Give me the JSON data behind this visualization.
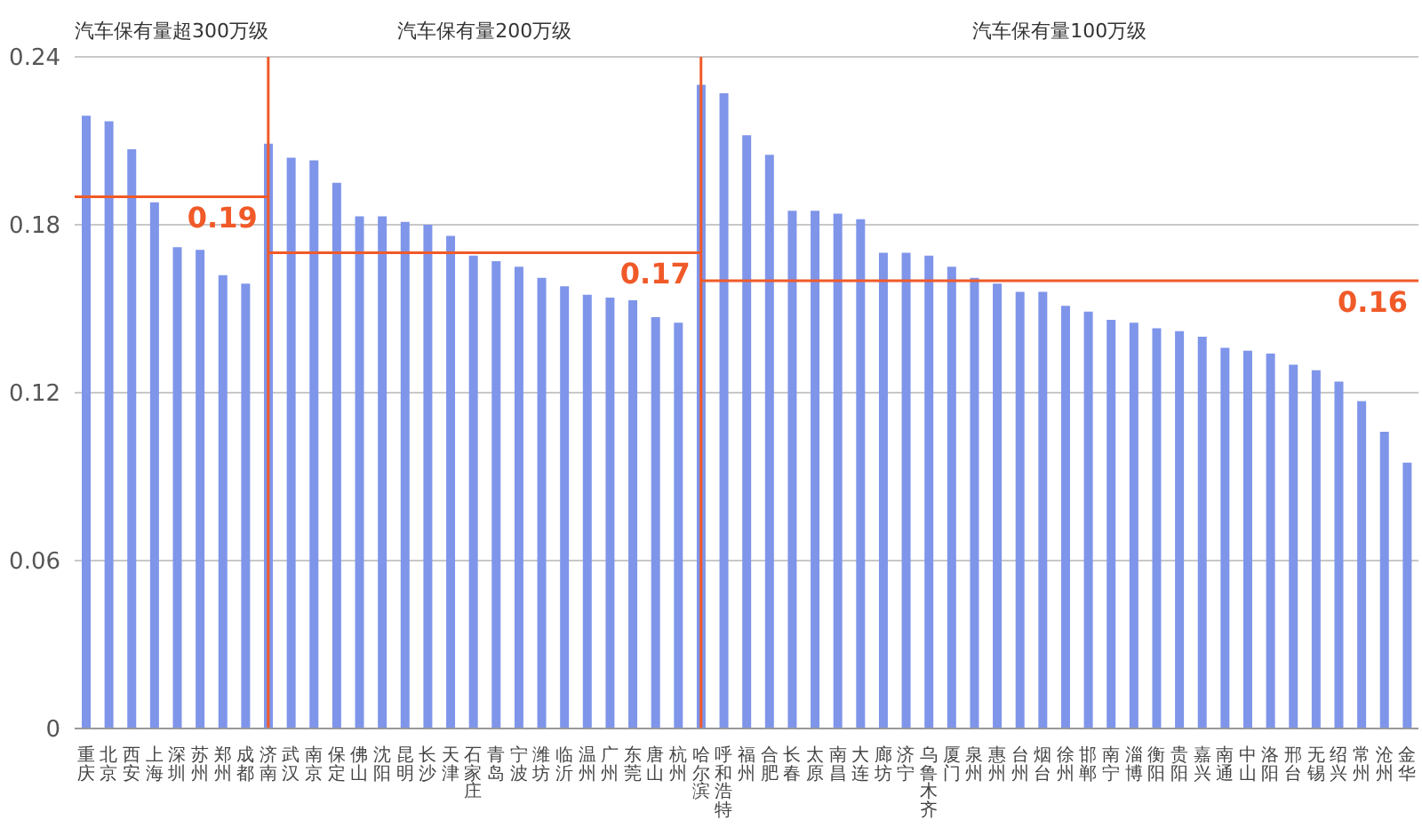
{
  "chart_data": {
    "type": "bar",
    "categories": [
      "重庆",
      "北京",
      "西安",
      "上海",
      "深圳",
      "苏州",
      "郑州",
      "成都",
      "济南",
      "武汉",
      "南京",
      "保定",
      "佛山",
      "沈阳",
      "昆明",
      "长沙",
      "天津",
      "石家庄",
      "青岛",
      "宁波",
      "潍坊",
      "临沂",
      "温州",
      "广州",
      "东莞",
      "唐山",
      "杭州",
      "哈尔滨",
      "呼和浩特",
      "福州",
      "合肥",
      "长春",
      "太原",
      "南昌",
      "大连",
      "廊坊",
      "济宁",
      "乌鲁木齐",
      "厦门",
      "泉州",
      "惠州",
      "台州",
      "烟台",
      "徐州",
      "邯郸",
      "南宁",
      "淄博",
      "衡阳",
      "贵阳",
      "嘉兴",
      "南通",
      "中山",
      "洛阳",
      "邢台",
      "无锡",
      "绍兴",
      "常州",
      "沧州",
      "金华"
    ],
    "values": [
      0.219,
      0.217,
      0.207,
      0.188,
      0.172,
      0.171,
      0.162,
      0.159,
      0.209,
      0.204,
      0.203,
      0.195,
      0.183,
      0.183,
      0.181,
      0.18,
      0.176,
      0.169,
      0.167,
      0.165,
      0.161,
      0.158,
      0.155,
      0.154,
      0.153,
      0.147,
      0.145,
      0.23,
      0.227,
      0.212,
      0.205,
      0.185,
      0.185,
      0.184,
      0.182,
      0.17,
      0.17,
      0.169,
      0.165,
      0.161,
      0.159,
      0.156,
      0.156,
      0.151,
      0.149,
      0.146,
      0.145,
      0.143,
      0.142,
      0.14,
      0.136,
      0.135,
      0.134,
      0.13,
      0.128,
      0.124,
      0.117,
      0.106,
      0.095
    ],
    "color": "#7f95ea",
    "ylim": [
      0,
      0.24
    ],
    "yticks": [
      0,
      0.06,
      0.12,
      0.18,
      0.24
    ],
    "grid": "y",
    "legend": false,
    "annotations": [
      "汽车保有量超300万级",
      "汽车保有量200万级",
      "汽车保有量100万级"
    ],
    "ref_lines": [
      {
        "axis": "x",
        "value": "济南",
        "color": "#f05a28"
      },
      {
        "axis": "x",
        "value": "哈尔滨",
        "color": "#f05a28"
      },
      {
        "axis": "y",
        "value": 0.19,
        "label": "0.19",
        "color": "#f05a28"
      },
      {
        "axis": "y",
        "value": 0.17,
        "label": "0.17",
        "color": "#f05a28"
      },
      {
        "axis": "y",
        "value": 0.16,
        "label": "0.16",
        "color": "#f05a28"
      }
    ]
  }
}
